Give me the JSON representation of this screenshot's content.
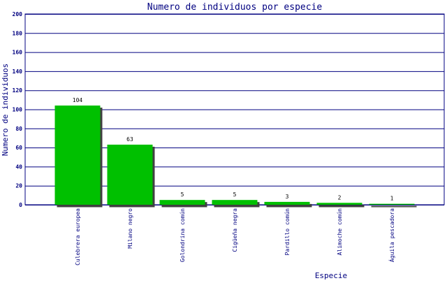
{
  "chart_data": {
    "type": "bar",
    "title": "Numero de individuos por especie",
    "xlabel": "Especie",
    "ylabel": "Numero de individuos",
    "categories": [
      "Culebrera europea",
      "Milano negro",
      "Golondrina común",
      "Cigüeña negra",
      "Pardillo común",
      "Alimoche común",
      "Águila pescadora"
    ],
    "values": [
      104,
      63,
      5,
      5,
      3,
      2,
      1
    ],
    "data_labels": [
      "104",
      "63",
      "5",
      "5",
      "3",
      "2",
      "1"
    ],
    "ylim": [
      0,
      200
    ],
    "yticks": [
      "0",
      "20",
      "40",
      "60",
      "80",
      "100",
      "120",
      "140",
      "160",
      "180",
      "200"
    ],
    "grid": true,
    "legend": "none",
    "colors": {
      "bar": "#00c000",
      "shadow": "#404040",
      "axis": "#000080",
      "text": "#000080"
    }
  }
}
